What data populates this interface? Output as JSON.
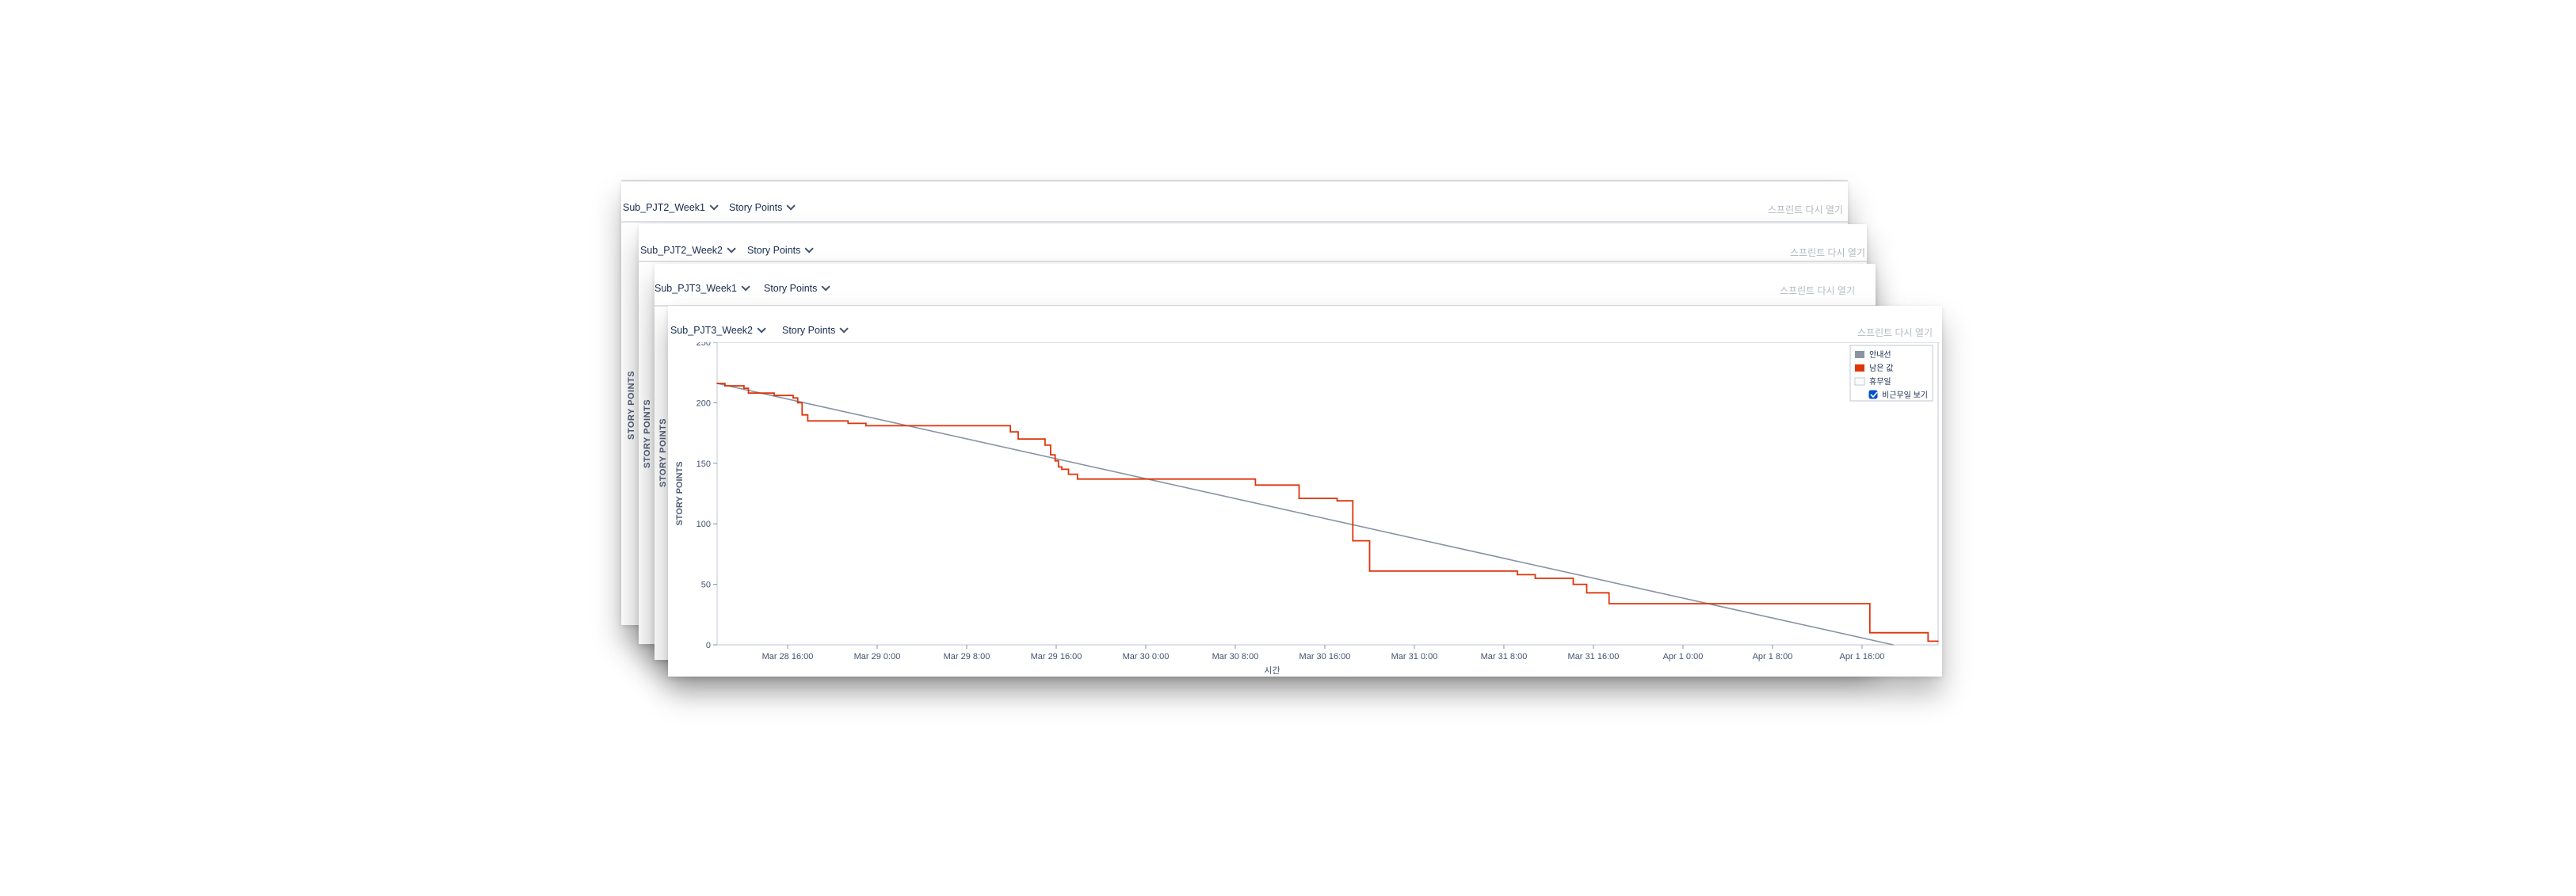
{
  "cards": [
    {
      "sprint": "Sub_PJT2_Week1",
      "metric": "Story Points",
      "reopen": "스프린트 다시 열기",
      "ylabel": "STORY POINTS"
    },
    {
      "sprint": "Sub_PJT2_Week2",
      "metric": "Story Points",
      "reopen": "스프린트 다시 열기",
      "ylabel": "STORY POINTS"
    },
    {
      "sprint": "Sub_PJT3_Week1",
      "metric": "Story Points",
      "reopen": "스프린트 다시 열기",
      "ylabel": "STORY POINTS"
    },
    {
      "sprint": "Sub_PJT3_Week2",
      "metric": "Story Points",
      "reopen": "스프린트 다시 열기",
      "ylabel": "STORY POINTS"
    }
  ],
  "legend": {
    "guide": "안내선",
    "remaining": "남은 값",
    "non_working": "휴무일",
    "show_non_working": "비근무일 보기",
    "show_non_working_checked": true
  },
  "colors": {
    "guide": "#8993a4",
    "remaining": "#de350b",
    "accent": "#0052cc"
  },
  "chart_data": {
    "type": "line",
    "ylabel": "STORY POINTS",
    "xlabel": "시간",
    "ylim": [
      0,
      250
    ],
    "yticks": [
      0,
      50,
      100,
      150,
      200,
      250
    ],
    "x_ticks": [
      {
        "t": 16,
        "label": "Mar 28 16:00"
      },
      {
        "t": 24,
        "label": "Mar 29 0:00"
      },
      {
        "t": 32,
        "label": "Mar 29 8:00"
      },
      {
        "t": 40,
        "label": "Mar 29 16:00"
      },
      {
        "t": 48,
        "label": "Mar 30 0:00"
      },
      {
        "t": 56,
        "label": "Mar 30 8:00"
      },
      {
        "t": 64,
        "label": "Mar 30 16:00"
      },
      {
        "t": 72,
        "label": "Mar 31 0:00"
      },
      {
        "t": 80,
        "label": "Mar 31 8:00"
      },
      {
        "t": 88,
        "label": "Mar 31 16:00"
      },
      {
        "t": 96,
        "label": "Apr 1 0:00"
      },
      {
        "t": 104,
        "label": "Apr 1 8:00"
      },
      {
        "t": 112,
        "label": "Apr 1 16:00"
      }
    ],
    "xlim": [
      9.7,
      118.8
    ],
    "series": [
      {
        "name": "안내선",
        "points": [
          [
            9.7,
            216
          ],
          [
            114.8,
            0
          ]
        ]
      },
      {
        "name": "남은 값",
        "step": true,
        "points": [
          [
            9.7,
            216
          ],
          [
            10.4,
            214
          ],
          [
            12.1,
            212
          ],
          [
            12.5,
            208
          ],
          [
            14.8,
            206
          ],
          [
            16.5,
            204
          ],
          [
            16.9,
            200
          ],
          [
            17.3,
            190
          ],
          [
            17.8,
            185
          ],
          [
            21.4,
            183
          ],
          [
            23.0,
            181
          ],
          [
            35.9,
            176
          ],
          [
            36.6,
            170
          ],
          [
            39.0,
            165
          ],
          [
            39.5,
            157
          ],
          [
            39.9,
            152
          ],
          [
            40.2,
            147
          ],
          [
            40.5,
            145
          ],
          [
            41.1,
            141
          ],
          [
            41.9,
            137
          ],
          [
            57.8,
            132
          ],
          [
            61.7,
            121
          ],
          [
            65.1,
            119
          ],
          [
            66.5,
            86
          ],
          [
            68.0,
            61
          ],
          [
            81.2,
            58
          ],
          [
            82.8,
            55
          ],
          [
            86.2,
            50
          ],
          [
            87.4,
            43
          ],
          [
            89.4,
            34
          ],
          [
            112.7,
            10
          ],
          [
            117.9,
            3
          ],
          [
            118.8,
            3
          ]
        ]
      }
    ],
    "legend_position": "top-right"
  }
}
